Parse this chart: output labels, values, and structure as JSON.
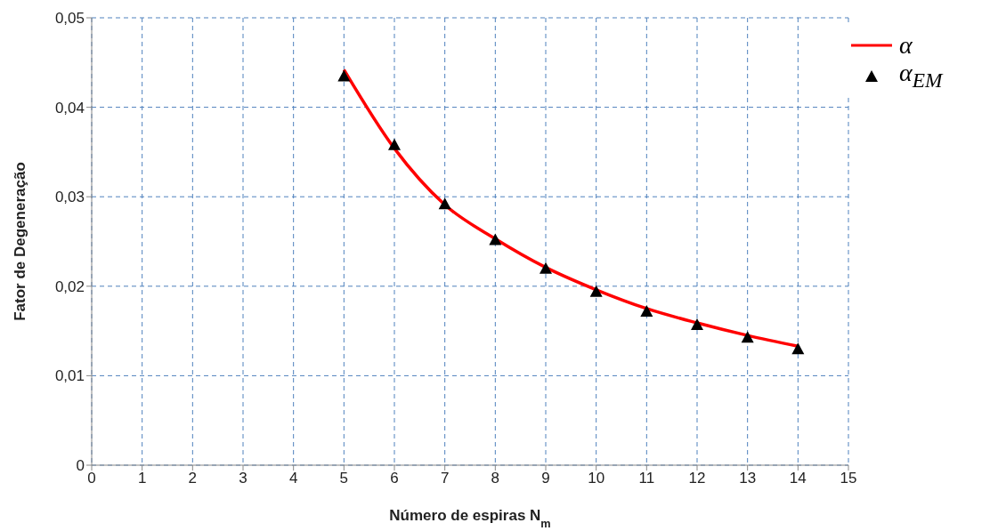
{
  "chart_data": {
    "type": "line",
    "xlabel": "Número de espiras N$_{m}$",
    "ylabel": "Fator de Degeneração",
    "x": [
      5,
      6,
      7,
      8,
      9,
      10,
      11,
      12,
      13,
      14
    ],
    "series": [
      {
        "name": "α",
        "color": "#ff0000",
        "marker": "none",
        "values": [
          0.0442,
          0.0354,
          0.0291,
          0.0253,
          0.0221,
          0.0196,
          0.0175,
          0.0159,
          0.0145,
          0.0133
        ]
      },
      {
        "name": "α$_{EM}$",
        "type": "scatter",
        "color": "#000000",
        "marker": "triangle",
        "values": [
          0.0435,
          0.0358,
          0.0292,
          0.0252,
          0.022,
          0.0194,
          0.0172,
          0.0157,
          0.0143,
          0.013
        ]
      }
    ],
    "xlim": [
      0,
      15
    ],
    "xticks": [
      0,
      1,
      2,
      3,
      4,
      5,
      6,
      7,
      8,
      9,
      10,
      11,
      12,
      13,
      14,
      15
    ],
    "ylim": [
      0,
      0.05
    ],
    "yticks": [
      0,
      {
        "value": 0.01,
        "label": "0,01"
      },
      {
        "value": 0.02,
        "label": "0,02"
      },
      {
        "value": 0.03,
        "label": "0,03"
      },
      {
        "value": 0.04,
        "label": "0,04"
      },
      {
        "value": 0.05,
        "label": "0,05"
      }
    ],
    "grid": true,
    "legend": "top right"
  }
}
